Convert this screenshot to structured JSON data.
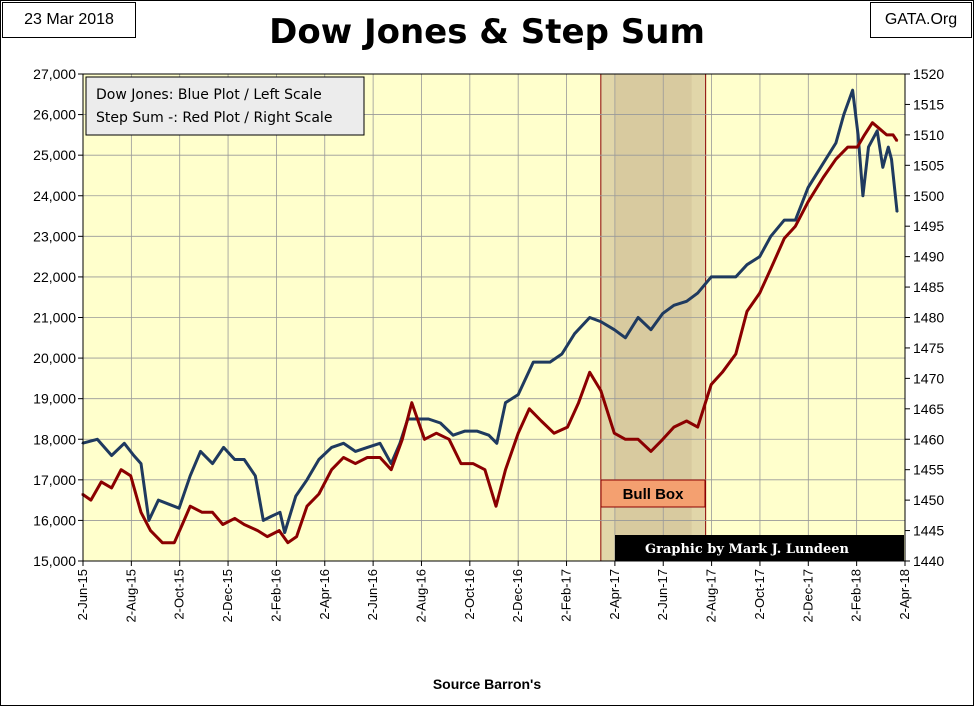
{
  "header": {
    "date": "23 Mar 2018",
    "site": "GATA.Org"
  },
  "footer": {
    "source": "Source Barron's"
  },
  "colors": {
    "plot_background": "#ffffcc",
    "dow_line": "#1f3a5f",
    "step_line": "#8b0000",
    "bull_box_fill": "#c8b48c",
    "bull_label_fill": "#f4a070",
    "grid": "#999999"
  },
  "chart_data": {
    "type": "line",
    "title": "Dow Jones & Step Sum",
    "legend": {
      "placement": "top-left",
      "lines": [
        "Dow Jones: Blue Plot / Left Scale",
        "Step Sum -: Red Plot / Right Scale"
      ]
    },
    "annotations": {
      "bull_box": "Bull Box",
      "credit": "Graphic by Mark J. Lundeen"
    },
    "x_tick_labels": [
      "2-Jun-15",
      "2-Aug-15",
      "2-Oct-15",
      "2-Dec-15",
      "2-Feb-16",
      "2-Apr-16",
      "2-Jun-16",
      "2-Aug-16",
      "2-Oct-16",
      "2-Dec-16",
      "2-Feb-17",
      "2-Apr-17",
      "2-Jun-17",
      "2-Aug-17",
      "2-Oct-17",
      "2-Dec-17",
      "2-Feb-18",
      "2-Apr-18"
    ],
    "y_left": {
      "min": 15000,
      "max": 27000,
      "ticks": [
        "15,000",
        "16,000",
        "17,000",
        "18,000",
        "19,000",
        "20,000",
        "21,000",
        "22,000",
        "23,000",
        "24,000",
        "25,000",
        "26,000",
        "27,000"
      ]
    },
    "y_right": {
      "min": 1440,
      "max": 1520,
      "ticks": [
        "1440",
        "1445",
        "1450",
        "1455",
        "1460",
        "1465",
        "1470",
        "1475",
        "1480",
        "1485",
        "1490",
        "1495",
        "1500",
        "1505",
        "1510",
        "1515",
        "1520"
      ]
    },
    "grid": true,
    "bull_box_range": [
      "2017-03-15",
      "2017-07-25"
    ],
    "series": [
      {
        "axis": "left",
        "points": [
          [
            "2015-06-01",
            17900
          ],
          [
            "2015-06-20",
            18000
          ],
          [
            "2015-07-08",
            17600
          ],
          [
            "2015-07-24",
            17900
          ],
          [
            "2015-08-05",
            17600
          ],
          [
            "2015-08-14",
            17400
          ],
          [
            "2015-08-24",
            16000
          ],
          [
            "2015-09-05",
            16500
          ],
          [
            "2015-09-18",
            16400
          ],
          [
            "2015-10-01",
            16300
          ],
          [
            "2015-10-15",
            17100
          ],
          [
            "2015-10-28",
            17700
          ],
          [
            "2015-11-12",
            17400
          ],
          [
            "2015-11-26",
            17800
          ],
          [
            "2015-12-10",
            17500
          ],
          [
            "2015-12-22",
            17500
          ],
          [
            "2016-01-05",
            17100
          ],
          [
            "2016-01-15",
            16000
          ],
          [
            "2016-01-25",
            16100
          ],
          [
            "2016-02-05",
            16200
          ],
          [
            "2016-02-11",
            15700
          ],
          [
            "2016-02-25",
            16600
          ],
          [
            "2016-03-10",
            17000
          ],
          [
            "2016-03-25",
            17500
          ],
          [
            "2016-04-10",
            17800
          ],
          [
            "2016-04-25",
            17900
          ],
          [
            "2016-05-10",
            17700
          ],
          [
            "2016-05-25",
            17800
          ],
          [
            "2016-06-10",
            17900
          ],
          [
            "2016-06-24",
            17400
          ],
          [
            "2016-07-05",
            17900
          ],
          [
            "2016-07-15",
            18500
          ],
          [
            "2016-08-10",
            18500
          ],
          [
            "2016-08-25",
            18400
          ],
          [
            "2016-09-10",
            18100
          ],
          [
            "2016-09-25",
            18200
          ],
          [
            "2016-10-10",
            18200
          ],
          [
            "2016-10-25",
            18100
          ],
          [
            "2016-11-04",
            17900
          ],
          [
            "2016-11-15",
            18900
          ],
          [
            "2016-12-01",
            19100
          ],
          [
            "2016-12-20",
            19900
          ],
          [
            "2017-01-10",
            19900
          ],
          [
            "2017-01-25",
            20100
          ],
          [
            "2017-02-10",
            20600
          ],
          [
            "2017-03-01",
            21000
          ],
          [
            "2017-03-15",
            20900
          ],
          [
            "2017-04-01",
            20700
          ],
          [
            "2017-04-15",
            20500
          ],
          [
            "2017-05-01",
            21000
          ],
          [
            "2017-05-17",
            20700
          ],
          [
            "2017-06-01",
            21100
          ],
          [
            "2017-06-15",
            21300
          ],
          [
            "2017-07-01",
            21400
          ],
          [
            "2017-07-15",
            21600
          ],
          [
            "2017-08-01",
            22000
          ],
          [
            "2017-08-15",
            22000
          ],
          [
            "2017-09-01",
            22000
          ],
          [
            "2017-09-15",
            22300
          ],
          [
            "2017-10-01",
            22500
          ],
          [
            "2017-10-15",
            23000
          ],
          [
            "2017-11-01",
            23400
          ],
          [
            "2017-11-15",
            23400
          ],
          [
            "2017-12-01",
            24200
          ],
          [
            "2017-12-20",
            24800
          ],
          [
            "2018-01-05",
            25300
          ],
          [
            "2018-01-15",
            26000
          ],
          [
            "2018-01-26",
            26600
          ],
          [
            "2018-02-02",
            25500
          ],
          [
            "2018-02-08",
            24000
          ],
          [
            "2018-02-15",
            25200
          ],
          [
            "2018-02-26",
            25600
          ],
          [
            "2018-03-05",
            24700
          ],
          [
            "2018-03-12",
            25200
          ],
          [
            "2018-03-16",
            24900
          ],
          [
            "2018-03-23",
            23600
          ]
        ]
      },
      {
        "axis": "right",
        "points": [
          [
            "2015-06-01",
            1451
          ],
          [
            "2015-06-12",
            1450
          ],
          [
            "2015-06-25",
            1453
          ],
          [
            "2015-07-08",
            1452
          ],
          [
            "2015-07-20",
            1455
          ],
          [
            "2015-08-01",
            1454
          ],
          [
            "2015-08-14",
            1448
          ],
          [
            "2015-08-26",
            1445
          ],
          [
            "2015-09-10",
            1443
          ],
          [
            "2015-09-25",
            1443
          ],
          [
            "2015-10-05",
            1446
          ],
          [
            "2015-10-15",
            1449
          ],
          [
            "2015-10-30",
            1448
          ],
          [
            "2015-11-12",
            1448
          ],
          [
            "2015-11-25",
            1446
          ],
          [
            "2015-12-10",
            1447
          ],
          [
            "2015-12-22",
            1446
          ],
          [
            "2016-01-08",
            1445
          ],
          [
            "2016-01-20",
            1444
          ],
          [
            "2016-02-04",
            1445
          ],
          [
            "2016-02-15",
            1443
          ],
          [
            "2016-02-26",
            1444
          ],
          [
            "2016-03-10",
            1449
          ],
          [
            "2016-03-25",
            1451
          ],
          [
            "2016-04-10",
            1455
          ],
          [
            "2016-04-25",
            1457
          ],
          [
            "2016-05-10",
            1456
          ],
          [
            "2016-05-25",
            1457
          ],
          [
            "2016-06-10",
            1457
          ],
          [
            "2016-06-24",
            1455
          ],
          [
            "2016-07-08",
            1460
          ],
          [
            "2016-07-20",
            1466
          ],
          [
            "2016-08-05",
            1460
          ],
          [
            "2016-08-20",
            1461
          ],
          [
            "2016-09-05",
            1460
          ],
          [
            "2016-09-20",
            1456
          ],
          [
            "2016-10-05",
            1456
          ],
          [
            "2016-10-20",
            1455
          ],
          [
            "2016-11-03",
            1449
          ],
          [
            "2016-11-15",
            1455
          ],
          [
            "2016-12-01",
            1461
          ],
          [
            "2016-12-15",
            1465
          ],
          [
            "2016-12-30",
            1463
          ],
          [
            "2017-01-15",
            1461
          ],
          [
            "2017-02-01",
            1462
          ],
          [
            "2017-02-15",
            1466
          ],
          [
            "2017-03-01",
            1471
          ],
          [
            "2017-03-15",
            1468
          ],
          [
            "2017-04-01",
            1461
          ],
          [
            "2017-04-15",
            1460
          ],
          [
            "2017-05-01",
            1460
          ],
          [
            "2017-05-17",
            1458
          ],
          [
            "2017-06-01",
            1460
          ],
          [
            "2017-06-15",
            1462
          ],
          [
            "2017-07-01",
            1463
          ],
          [
            "2017-07-15",
            1462
          ],
          [
            "2017-08-01",
            1469
          ],
          [
            "2017-08-15",
            1471
          ],
          [
            "2017-09-01",
            1474
          ],
          [
            "2017-09-15",
            1481
          ],
          [
            "2017-10-01",
            1484
          ],
          [
            "2017-10-15",
            1488
          ],
          [
            "2017-11-01",
            1493
          ],
          [
            "2017-11-15",
            1495
          ],
          [
            "2017-12-01",
            1499
          ],
          [
            "2017-12-20",
            1503
          ],
          [
            "2018-01-05",
            1506
          ],
          [
            "2018-01-20",
            1508
          ],
          [
            "2018-02-01",
            1508
          ],
          [
            "2018-02-10",
            1510
          ],
          [
            "2018-02-20",
            1512
          ],
          [
            "2018-03-01",
            1511
          ],
          [
            "2018-03-10",
            1510
          ],
          [
            "2018-03-18",
            1510
          ],
          [
            "2018-03-23",
            1509
          ]
        ]
      }
    ]
  }
}
